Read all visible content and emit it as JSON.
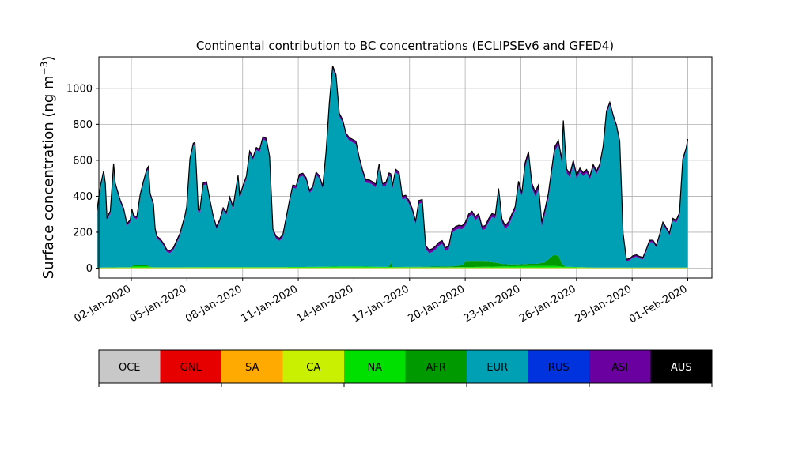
{
  "chart_data": {
    "type": "area",
    "stacked": true,
    "title": "Continental contribution to BC concentrations (ECLIPSEv6 and GFED4)",
    "ylabel_main": "Surface concentration (ng m",
    "ylabel_sup": "−3",
    "ylabel_close": ")",
    "ylim": [
      -55,
      1175
    ],
    "y_ticks": [
      0,
      200,
      400,
      600,
      800,
      1000
    ],
    "x_ticks": [
      "02-Jan-2020",
      "05-Jan-2020",
      "08-Jan-2020",
      "11-Jan-2020",
      "14-Jan-2020",
      "17-Jan-2020",
      "20-Jan-2020",
      "23-Jan-2020",
      "26-Jan-2020",
      "29-Jan-2020",
      "01-Feb-2020"
    ],
    "x_start_date": "2020-01-01",
    "x_step_days": 0.125,
    "grid": true,
    "legend_position": "bottom",
    "series": [
      {
        "name": "OCE",
        "color": "#c8c8c8",
        "values": [
          0
        ]
      },
      {
        "name": "GNL",
        "color": "#e60000",
        "values": [
          0
        ]
      },
      {
        "name": "SA",
        "color": "#ffaa00",
        "values": [
          0
        ]
      },
      {
        "name": "CA",
        "color": "#c8f000",
        "values": [
          [
            1.0,
            3
          ],
          [
            8.0,
            3
          ],
          [
            15.0,
            3
          ],
          [
            24.0,
            3
          ],
          [
            31.0,
            3
          ]
        ]
      },
      {
        "name": "NA",
        "color": "#00e000",
        "values": [
          [
            1.0,
            0
          ],
          [
            2.5,
            2
          ],
          [
            3.0,
            2
          ],
          [
            3.2,
            8
          ],
          [
            4.0,
            8
          ],
          [
            4.3,
            2
          ],
          [
            6.0,
            2
          ],
          [
            8.0,
            3
          ],
          [
            12.0,
            3
          ],
          [
            14.0,
            4
          ],
          [
            15.5,
            6
          ],
          [
            17.0,
            6
          ],
          [
            19.0,
            3
          ],
          [
            22.0,
            2
          ],
          [
            24.0,
            4
          ],
          [
            26.0,
            8
          ],
          [
            28.5,
            10
          ],
          [
            29.0,
            6
          ],
          [
            31.0,
            0
          ]
        ]
      },
      {
        "name": "AFR",
        "color": "#009a00",
        "values": [
          [
            1.0,
            0
          ],
          [
            3.0,
            0
          ],
          [
            3.2,
            5
          ],
          [
            4.0,
            5
          ],
          [
            4.3,
            0
          ],
          [
            18.6,
            0
          ],
          [
            18.7,
            30
          ],
          [
            18.8,
            0
          ],
          [
            22.5,
            5
          ],
          [
            23.0,
            10
          ],
          [
            23.2,
            30
          ],
          [
            24.0,
            30
          ],
          [
            24.5,
            28
          ],
          [
            25.0,
            22
          ],
          [
            25.5,
            12
          ],
          [
            26.0,
            10
          ],
          [
            26.5,
            10
          ],
          [
            27.0,
            12
          ],
          [
            27.5,
            12
          ],
          [
            28.0,
            20
          ],
          [
            28.5,
            60
          ],
          [
            28.8,
            60
          ],
          [
            29.0,
            18
          ],
          [
            29.2,
            0
          ],
          [
            31.0,
            0
          ]
        ]
      },
      {
        "name": "EUR",
        "color": "#00a0b4",
        "values": [
          [
            1.0,
            305
          ],
          [
            1.2,
            440
          ],
          [
            1.4,
            525
          ],
          [
            1.5,
            455
          ],
          [
            1.6,
            265
          ],
          [
            1.8,
            300
          ],
          [
            2.0,
            565
          ],
          [
            2.1,
            455
          ],
          [
            2.4,
            360
          ],
          [
            2.6,
            315
          ],
          [
            2.8,
            230
          ],
          [
            3.0,
            250
          ],
          [
            3.1,
            305
          ],
          [
            3.2,
            265
          ],
          [
            3.4,
            255
          ],
          [
            3.6,
            380
          ],
          [
            3.8,
            455
          ],
          [
            4.0,
            520
          ],
          [
            4.1,
            540
          ],
          [
            4.2,
            395
          ],
          [
            4.4,
            340
          ],
          [
            4.5,
            205
          ],
          [
            4.6,
            160
          ],
          [
            4.8,
            145
          ],
          [
            5.0,
            120
          ],
          [
            5.2,
            85
          ],
          [
            5.4,
            78
          ],
          [
            5.6,
            95
          ],
          [
            6.0,
            175
          ],
          [
            6.3,
            275
          ],
          [
            6.4,
            320
          ],
          [
            6.6,
            590
          ],
          [
            6.8,
            675
          ],
          [
            6.9,
            680
          ],
          [
            7.0,
            505
          ],
          [
            7.1,
            305
          ],
          [
            7.2,
            305
          ],
          [
            7.4,
            455
          ],
          [
            7.6,
            460
          ],
          [
            7.8,
            360
          ],
          [
            8.0,
            270
          ],
          [
            8.2,
            210
          ],
          [
            8.4,
            250
          ],
          [
            8.6,
            315
          ],
          [
            8.8,
            290
          ],
          [
            9.0,
            375
          ],
          [
            9.2,
            320
          ],
          [
            9.4,
            440
          ],
          [
            9.5,
            495
          ],
          [
            9.6,
            380
          ],
          [
            9.8,
            440
          ],
          [
            10.0,
            490
          ],
          [
            10.2,
            630
          ],
          [
            10.4,
            595
          ],
          [
            10.6,
            650
          ],
          [
            10.8,
            640
          ],
          [
            11.0,
            710
          ],
          [
            11.2,
            700
          ],
          [
            11.4,
            600
          ],
          [
            11.6,
            195
          ],
          [
            11.8,
            155
          ],
          [
            12.0,
            145
          ],
          [
            12.2,
            165
          ],
          [
            12.4,
            260
          ],
          [
            12.6,
            355
          ],
          [
            12.8,
            440
          ],
          [
            13.0,
            435
          ],
          [
            13.2,
            500
          ],
          [
            13.4,
            505
          ],
          [
            13.6,
            480
          ],
          [
            13.8,
            410
          ],
          [
            14.0,
            430
          ],
          [
            14.2,
            510
          ],
          [
            14.4,
            490
          ],
          [
            14.6,
            430
          ],
          [
            14.8,
            620
          ],
          [
            15.0,
            895
          ],
          [
            15.2,
            1100
          ],
          [
            15.4,
            1050
          ],
          [
            15.6,
            835
          ],
          [
            15.8,
            800
          ],
          [
            16.0,
            725
          ],
          [
            16.2,
            700
          ],
          [
            16.6,
            680
          ],
          [
            16.8,
            590
          ],
          [
            17.0,
            520
          ],
          [
            17.2,
            465
          ],
          [
            17.4,
            465
          ],
          [
            17.6,
            455
          ],
          [
            17.8,
            440
          ],
          [
            18.0,
            555
          ],
          [
            18.2,
            445
          ],
          [
            18.4,
            450
          ],
          [
            18.6,
            505
          ],
          [
            18.8,
            435
          ],
          [
            19.0,
            525
          ],
          [
            19.2,
            510
          ],
          [
            19.4,
            375
          ],
          [
            19.6,
            380
          ],
          [
            19.8,
            350
          ],
          [
            20.0,
            305
          ],
          [
            20.2,
            235
          ],
          [
            20.4,
            350
          ],
          [
            20.6,
            355
          ],
          [
            20.8,
            100
          ],
          [
            21.0,
            75
          ],
          [
            21.2,
            80
          ],
          [
            21.4,
            95
          ],
          [
            21.6,
            115
          ],
          [
            21.8,
            125
          ],
          [
            22.0,
            85
          ],
          [
            22.2,
            95
          ],
          [
            22.4,
            185
          ],
          [
            22.6,
            200
          ],
          [
            22.8,
            205
          ],
          [
            23.0,
            200
          ],
          [
            23.2,
            200
          ],
          [
            23.4,
            245
          ],
          [
            23.6,
            260
          ],
          [
            23.8,
            230
          ],
          [
            24.0,
            245
          ],
          [
            24.2,
            175
          ],
          [
            24.4,
            180
          ],
          [
            24.6,
            220
          ],
          [
            24.8,
            250
          ],
          [
            25.0,
            245
          ],
          [
            25.2,
            395
          ],
          [
            25.4,
            230
          ],
          [
            25.6,
            195
          ],
          [
            25.8,
            215
          ],
          [
            26.0,
            260
          ],
          [
            26.2,
            300
          ],
          [
            26.4,
            440
          ],
          [
            26.6,
            375
          ],
          [
            26.8,
            540
          ],
          [
            27.0,
            600
          ],
          [
            27.2,
            425
          ],
          [
            27.4,
            375
          ],
          [
            27.6,
            410
          ],
          [
            27.8,
            200
          ],
          [
            28.0,
            270
          ],
          [
            28.2,
            340
          ],
          [
            28.4,
            460
          ],
          [
            28.6,
            580
          ],
          [
            28.8,
            615
          ],
          [
            29.0,
            555
          ],
          [
            29.1,
            780
          ],
          [
            29.3,
            520
          ],
          [
            29.5,
            495
          ],
          [
            29.7,
            570
          ],
          [
            29.9,
            490
          ],
          [
            30.1,
            530
          ],
          [
            30.3,
            505
          ],
          [
            30.5,
            525
          ],
          [
            30.7,
            490
          ],
          [
            30.9,
            555
          ],
          [
            31.1,
            520
          ],
          [
            31.3,
            560
          ],
          [
            31.5,
            660
          ],
          [
            31.7,
            855
          ],
          [
            31.9,
            905
          ],
          [
            32.1,
            835
          ],
          [
            32.3,
            780
          ],
          [
            32.5,
            690
          ],
          [
            32.7,
            180
          ],
          [
            32.9,
            35
          ],
          [
            33.1,
            40
          ],
          [
            33.3,
            55
          ],
          [
            33.5,
            60
          ],
          [
            33.7,
            50
          ],
          [
            33.9,
            45
          ],
          [
            34.1,
            90
          ],
          [
            34.3,
            140
          ],
          [
            34.5,
            140
          ],
          [
            34.7,
            110
          ],
          [
            34.9,
            170
          ],
          [
            35.1,
            240
          ],
          [
            35.3,
            210
          ],
          [
            35.5,
            180
          ],
          [
            35.7,
            260
          ],
          [
            35.9,
            250
          ],
          [
            36.1,
            290
          ],
          [
            36.3,
            590
          ],
          [
            36.5,
            650
          ],
          [
            36.6,
            700
          ]
        ]
      },
      {
        "name": "RUS",
        "color": "#0033dd",
        "values": [
          [
            1.0,
            1
          ],
          [
            36.6,
            1
          ]
        ]
      },
      {
        "name": "ASI",
        "color": "#6a00a0",
        "values": [
          [
            1.0,
            10
          ],
          [
            10.0,
            12
          ],
          [
            26.0,
            18
          ],
          [
            28.0,
            25
          ],
          [
            33.0,
            8
          ],
          [
            36.6,
            12
          ]
        ]
      },
      {
        "name": "AUS",
        "color": "#000000",
        "values": [
          [
            1.0,
            2
          ],
          [
            36.6,
            2
          ]
        ]
      }
    ]
  }
}
